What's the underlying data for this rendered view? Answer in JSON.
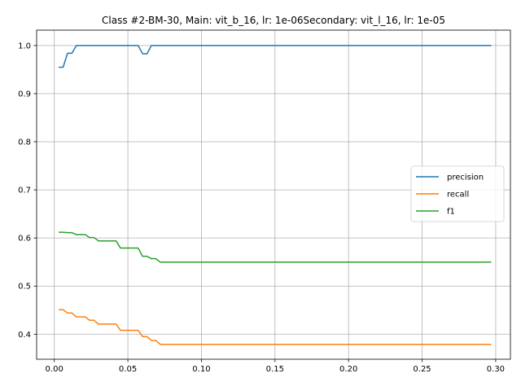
{
  "chart_data": {
    "type": "line",
    "title": "Class #2-BM-30, Main: vit_b_16, lr: 1e-06Secondary: vit_l_16, lr: 1e-05",
    "xlabel": "",
    "ylabel": "",
    "xlim": [
      -0.012,
      0.31
    ],
    "ylim": [
      0.348,
      1.032
    ],
    "xticks": [
      "0.00",
      "0.05",
      "0.10",
      "0.15",
      "0.20",
      "0.25",
      "0.30"
    ],
    "yticks": [
      "0.4",
      "0.5",
      "0.6",
      "0.7",
      "0.8",
      "0.9",
      "1.0"
    ],
    "grid": true,
    "legend_position": "right",
    "series": [
      {
        "name": "precision",
        "color": "#1f77b4",
        "points": [
          [
            0.003,
            0.955
          ],
          [
            0.006,
            0.955
          ],
          [
            0.009,
            0.984
          ],
          [
            0.012,
            0.984
          ],
          [
            0.015,
            1.0
          ],
          [
            0.057,
            1.0
          ],
          [
            0.06,
            0.983
          ],
          [
            0.063,
            0.983
          ],
          [
            0.066,
            1.0
          ],
          [
            0.297,
            1.0
          ]
        ]
      },
      {
        "name": "recall",
        "color": "#ff7f0e",
        "points": [
          [
            0.003,
            0.451
          ],
          [
            0.006,
            0.451
          ],
          [
            0.009,
            0.444
          ],
          [
            0.012,
            0.444
          ],
          [
            0.015,
            0.436
          ],
          [
            0.021,
            0.436
          ],
          [
            0.024,
            0.429
          ],
          [
            0.027,
            0.429
          ],
          [
            0.03,
            0.421
          ],
          [
            0.042,
            0.421
          ],
          [
            0.045,
            0.408
          ],
          [
            0.057,
            0.408
          ],
          [
            0.06,
            0.395
          ],
          [
            0.063,
            0.395
          ],
          [
            0.066,
            0.387
          ],
          [
            0.069,
            0.387
          ],
          [
            0.072,
            0.379
          ],
          [
            0.297,
            0.379
          ]
        ]
      },
      {
        "name": "f1",
        "color": "#2ca02c",
        "points": [
          [
            0.003,
            0.612
          ],
          [
            0.006,
            0.612
          ],
          [
            0.009,
            0.611
          ],
          [
            0.012,
            0.611
          ],
          [
            0.015,
            0.607
          ],
          [
            0.021,
            0.607
          ],
          [
            0.024,
            0.601
          ],
          [
            0.027,
            0.601
          ],
          [
            0.03,
            0.594
          ],
          [
            0.042,
            0.594
          ],
          [
            0.045,
            0.579
          ],
          [
            0.057,
            0.579
          ],
          [
            0.06,
            0.562
          ],
          [
            0.063,
            0.562
          ],
          [
            0.066,
            0.557
          ],
          [
            0.069,
            0.557
          ],
          [
            0.072,
            0.55
          ],
          [
            0.297,
            0.55
          ]
        ]
      }
    ]
  }
}
